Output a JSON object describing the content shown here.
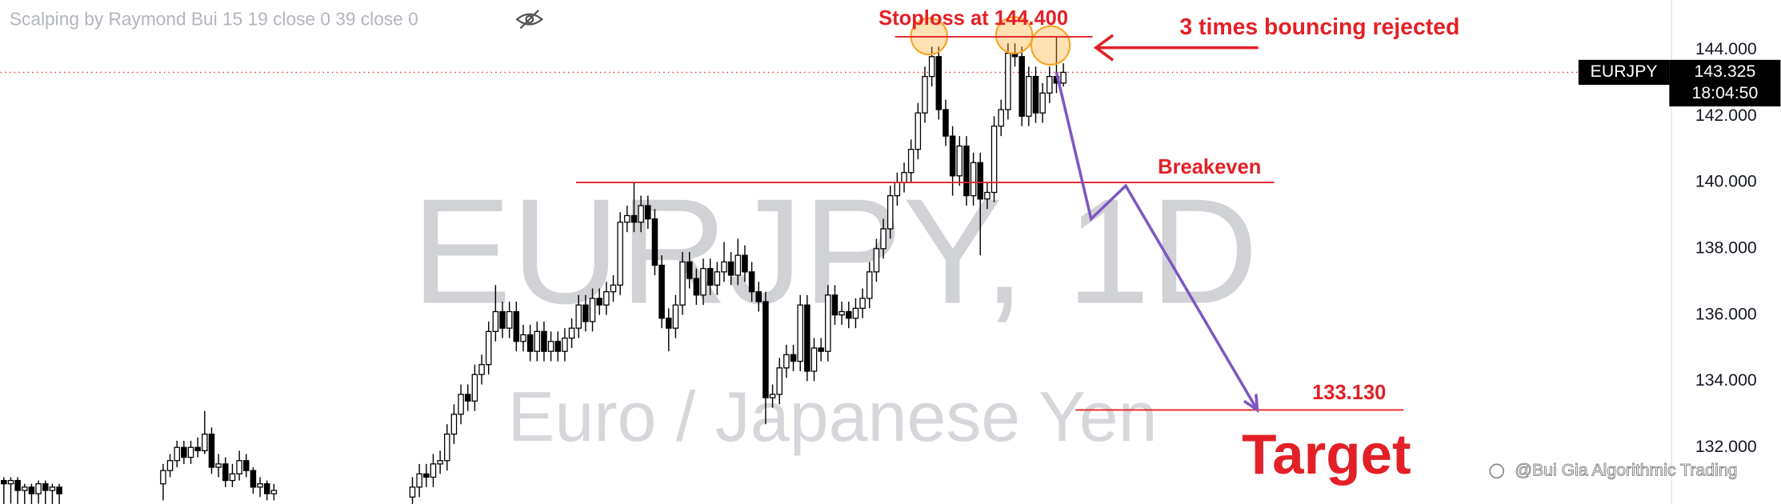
{
  "chart_data": {
    "type": "candlestick",
    "title": "Scalping by Raymond Bui 15 19 close 0 39 close 0",
    "watermark": {
      "symbol": "EURJPY, 1D",
      "name": "Euro / Japanese Yen"
    },
    "open": [
      131.0,
      130.9,
      131.0,
      130.7,
      130.8,
      130.6,
      130.9,
      130.7,
      130.8,
      null,
      null,
      null,
      null,
      null,
      null,
      null,
      null,
      null,
      null,
      null,
      null,
      null,
      null,
      130.9,
      131.3,
      131.6,
      132.0,
      131.7,
      132.0,
      131.9,
      132.4,
      131.4,
      131.5,
      131.0,
      131.2,
      131.6,
      131.3,
      130.8,
      130.9,
      130.6,
      null,
      null,
      null,
      null,
      null,
      null,
      null,
      null,
      null,
      null,
      null,
      null,
      null,
      null,
      null,
      null,
      null,
      null,
      null,
      130.5,
      130.8,
      131.2,
      131.1,
      131.5,
      131.6,
      132.4,
      133.0,
      133.6,
      133.4,
      134.2,
      134.5,
      135.5,
      136.1,
      135.6,
      136.1,
      135.2,
      135.4,
      134.9,
      135.5,
      134.9,
      135.2,
      134.9,
      135.3,
      135.6,
      136.3,
      135.8,
      136.5,
      136.3,
      136.7,
      136.9,
      138.8,
      139.0,
      138.8,
      139.3,
      138.9,
      137.5,
      135.9,
      135.6,
      136.3,
      137.6,
      137.1,
      136.6,
      137.4,
      136.9,
      137.3,
      137.6,
      137.2,
      137.8,
      137.3,
      136.7,
      136.4,
      133.5,
      133.6,
      134.4,
      134.8,
      134.6,
      136.3,
      134.3,
      135.0,
      134.9,
      136.6,
      136.0,
      136.1,
      135.9,
      136.2,
      136.5,
      137.3,
      138.0,
      138.6,
      139.6,
      140.0,
      140.3,
      141.0,
      142.1,
      143.2,
      143.8,
      142.2,
      141.4,
      140.2,
      141.1,
      139.6,
      140.6,
      139.5,
      139.7,
      141.7,
      142.2,
      143.9,
      143.8,
      142.0,
      143.2,
      142.1,
      142.7,
      143.2,
      143.0
    ],
    "high": [
      131.1,
      131.1,
      131.1,
      130.9,
      130.9,
      131.0,
      131.0,
      130.9,
      130.9,
      null,
      null,
      null,
      null,
      null,
      null,
      null,
      null,
      null,
      null,
      null,
      null,
      null,
      null,
      131.5,
      131.8,
      132.2,
      132.2,
      132.2,
      132.3,
      133.1,
      132.6,
      131.8,
      131.7,
      131.5,
      131.9,
      131.8,
      131.4,
      131.1,
      131.0,
      130.9,
      null,
      null,
      null,
      null,
      null,
      null,
      null,
      null,
      null,
      null,
      null,
      null,
      null,
      null,
      null,
      null,
      null,
      null,
      null,
      131.1,
      131.5,
      131.5,
      131.8,
      131.9,
      132.7,
      133.3,
      133.9,
      133.9,
      134.5,
      134.8,
      135.8,
      136.9,
      136.4,
      136.4,
      136.4,
      135.7,
      135.7,
      135.8,
      135.8,
      135.5,
      135.5,
      135.6,
      135.9,
      136.6,
      136.6,
      136.8,
      136.8,
      137.0,
      137.2,
      139.1,
      139.3,
      140.0,
      139.6,
      139.6,
      139.2,
      137.8,
      136.2,
      136.6,
      137.9,
      137.9,
      137.4,
      137.7,
      137.7,
      137.6,
      138.2,
      137.9,
      138.3,
      138.1,
      137.6,
      137.0,
      136.7,
      133.9,
      134.7,
      135.1,
      135.1,
      136.6,
      136.6,
      135.3,
      135.3,
      136.9,
      136.9,
      136.4,
      136.4,
      136.5,
      136.8,
      137.6,
      138.3,
      138.9,
      139.9,
      140.3,
      140.6,
      141.3,
      142.4,
      143.5,
      144.1,
      144.1,
      142.5,
      141.7,
      141.4,
      141.4,
      140.9,
      140.9,
      140.0,
      142.0,
      142.5,
      144.2,
      144.2,
      144.1,
      143.5,
      143.5,
      143.0,
      143.5,
      144.4,
      143.6
    ],
    "low": [
      130.2,
      130.3,
      130.2,
      130.1,
      130.2,
      130.3,
      130.2,
      130.1,
      130.2,
      null,
      null,
      null,
      null,
      null,
      null,
      null,
      null,
      null,
      null,
      null,
      null,
      null,
      null,
      130.4,
      131.1,
      131.4,
      131.5,
      131.5,
      131.7,
      131.8,
      131.2,
      131.1,
      130.8,
      130.8,
      131.0,
      131.1,
      130.6,
      130.5,
      130.4,
      130.4,
      null,
      null,
      null,
      null,
      null,
      null,
      null,
      null,
      null,
      null,
      null,
      null,
      null,
      null,
      null,
      null,
      null,
      null,
      null,
      130.2,
      130.5,
      130.8,
      130.8,
      131.2,
      131.3,
      132.1,
      132.7,
      133.1,
      133.1,
      133.9,
      134.2,
      135.2,
      135.3,
      135.3,
      134.9,
      134.9,
      134.6,
      134.6,
      134.6,
      134.6,
      134.6,
      134.6,
      135.0,
      135.3,
      135.5,
      135.5,
      136.0,
      136.0,
      136.4,
      136.6,
      138.5,
      138.5,
      138.5,
      138.6,
      137.2,
      135.6,
      134.9,
      135.3,
      136.0,
      136.8,
      136.3,
      136.3,
      136.6,
      136.6,
      137.0,
      136.9,
      136.9,
      137.0,
      136.4,
      136.1,
      132.7,
      133.2,
      133.3,
      134.1,
      134.3,
      134.3,
      134.0,
      134.0,
      134.6,
      134.6,
      135.7,
      135.7,
      135.6,
      135.6,
      135.9,
      136.2,
      137.0,
      137.7,
      138.3,
      139.3,
      139.7,
      140.0,
      140.7,
      141.8,
      142.9,
      141.9,
      141.1,
      139.6,
      139.9,
      139.3,
      139.3,
      137.8,
      139.2,
      139.4,
      141.4,
      141.9,
      143.5,
      141.7,
      141.7,
      141.8,
      141.8,
      142.4,
      142.7,
      142.9
    ],
    "close": [
      130.9,
      131.0,
      130.7,
      130.8,
      130.6,
      130.9,
      130.7,
      130.8,
      130.6,
      null,
      null,
      null,
      null,
      null,
      null,
      null,
      null,
      null,
      null,
      null,
      null,
      null,
      null,
      131.3,
      131.6,
      132.0,
      131.7,
      132.0,
      131.9,
      132.4,
      131.4,
      131.5,
      131.0,
      131.2,
      131.6,
      131.3,
      130.8,
      130.9,
      130.6,
      130.7,
      null,
      null,
      null,
      null,
      null,
      null,
      null,
      null,
      null,
      null,
      null,
      null,
      null,
      null,
      null,
      null,
      null,
      null,
      null,
      130.8,
      131.2,
      131.1,
      131.5,
      131.6,
      132.4,
      133.0,
      133.6,
      133.4,
      134.2,
      134.5,
      135.5,
      136.1,
      135.6,
      136.1,
      135.2,
      135.4,
      134.9,
      135.5,
      134.9,
      135.2,
      134.9,
      135.3,
      135.6,
      136.3,
      135.8,
      136.5,
      136.3,
      136.7,
      136.9,
      138.8,
      139.0,
      138.8,
      139.3,
      138.9,
      137.5,
      135.9,
      135.6,
      136.3,
      137.6,
      137.1,
      136.6,
      137.4,
      136.9,
      137.3,
      137.6,
      137.2,
      137.8,
      137.3,
      136.7,
      136.4,
      133.5,
      133.6,
      134.4,
      134.8,
      134.6,
      136.3,
      134.3,
      135.0,
      134.9,
      136.6,
      136.0,
      136.1,
      135.9,
      136.2,
      136.5,
      137.3,
      138.0,
      138.6,
      139.6,
      140.0,
      140.3,
      141.0,
      142.1,
      143.2,
      143.8,
      142.2,
      141.4,
      140.2,
      141.1,
      139.6,
      140.6,
      139.5,
      139.7,
      141.7,
      142.2,
      143.9,
      143.8,
      142.0,
      143.2,
      142.1,
      142.7,
      143.2,
      143.0,
      143.325
    ],
    "up_color": "#ffffff",
    "down_color": "#000000",
    "ylim": [
      130.29,
      145.51
    ],
    "yticks": [
      {
        "value": 144,
        "label": "144.000"
      },
      {
        "value": 142,
        "label": "142.000"
      },
      {
        "value": 140,
        "label": "140.000"
      },
      {
        "value": 138,
        "label": "138.000"
      },
      {
        "value": 136,
        "label": "136.000"
      },
      {
        "value": 134,
        "label": "134.000"
      },
      {
        "value": 132,
        "label": "132.000"
      }
    ],
    "price_tag": {
      "symbol": "EURJPY",
      "price": 143.325,
      "countdown": "18:04:50"
    },
    "levels": {
      "stoploss": {
        "label": "Stoploss at 144.400",
        "value": 144.4
      },
      "breakeven": {
        "label": "Breakeven",
        "value": 140.0
      },
      "target": {
        "value": 133.13,
        "label": "133.130",
        "caption": "Target"
      }
    },
    "rejection_note": "3 times bouncing rejected",
    "projection": {
      "color": "#7e57c2",
      "x": [
        152,
        157,
        162,
        181
      ],
      "values": [
        143.325,
        138.9,
        139.9,
        133.13
      ]
    },
    "level_color": "#e32027",
    "footer": "@Bui Gia Algorithmic Trading"
  }
}
